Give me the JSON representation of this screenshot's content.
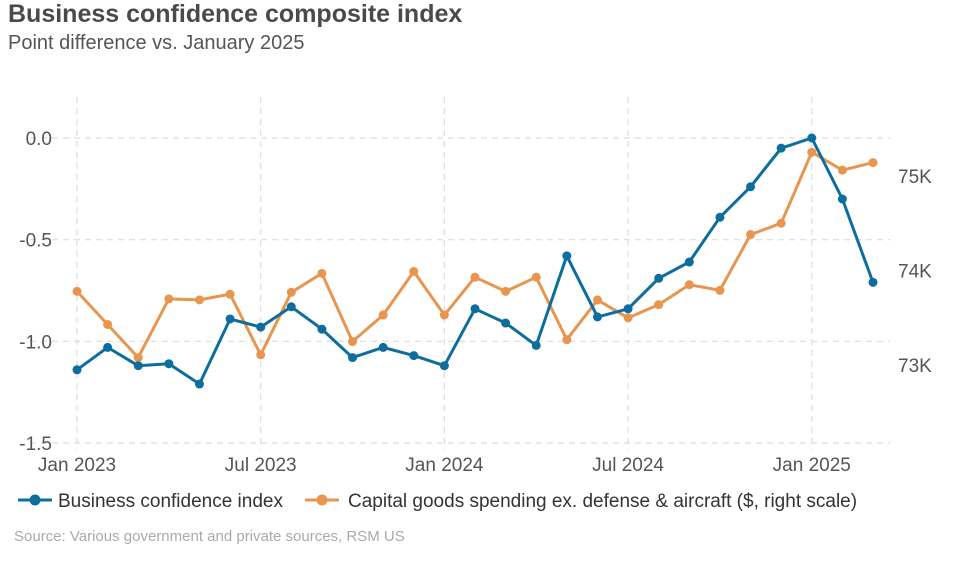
{
  "title": "Business confidence composite index",
  "subtitle": "Point difference vs. January 2025",
  "source": "Source: Various government and private sources, RSM US",
  "chart_data": {
    "type": "line",
    "x": [
      "2023-01",
      "2023-02",
      "2023-03",
      "2023-04",
      "2023-05",
      "2023-06",
      "2023-07",
      "2023-08",
      "2023-09",
      "2023-10",
      "2023-11",
      "2023-12",
      "2024-01",
      "2024-02",
      "2024-03",
      "2024-04",
      "2024-05",
      "2024-06",
      "2024-07",
      "2024-08",
      "2024-09",
      "2024-10",
      "2024-11",
      "2024-12",
      "2025-01",
      "2025-02",
      "2025-03"
    ],
    "x_ticks": [
      {
        "label": "Jan 2023",
        "index": 0
      },
      {
        "label": "Jul 2023",
        "index": 6
      },
      {
        "label": "Jan 2024",
        "index": 12
      },
      {
        "label": "Jul 2024",
        "index": 18
      },
      {
        "label": "Jan 2025",
        "index": 24
      }
    ],
    "left_axis": {
      "ticks": [
        "0.0",
        "-0.5",
        "-1.0",
        "-1.5"
      ],
      "tick_values": [
        0,
        -0.5,
        -1.0,
        -1.5
      ],
      "range": [
        -1.5,
        0
      ]
    },
    "right_axis": {
      "ticks": [
        "75K",
        "74K",
        "73K"
      ],
      "tick_values": [
        75000,
        74000,
        73000
      ],
      "range": [
        72400,
        75400
      ]
    },
    "series": [
      {
        "name": "Business confidence index",
        "axis": "left",
        "color": "#0d6e9e",
        "values": [
          -1.14,
          -1.03,
          -1.12,
          -1.11,
          -1.21,
          -0.89,
          -0.93,
          -0.83,
          -0.94,
          -1.08,
          -1.03,
          -1.07,
          -1.12,
          -0.84,
          -0.91,
          -1.02,
          -0.58,
          -0.88,
          -0.84,
          -0.69,
          -0.61,
          -0.39,
          -0.24,
          -0.05,
          0.0,
          -0.3,
          -0.71
        ]
      },
      {
        "name": "Capital goods spending ex. defense & aircraft ($, right scale)",
        "axis": "right",
        "color": "#e8964f",
        "values": [
          73780,
          73430,
          73080,
          73700,
          73690,
          73750,
          73110,
          73770,
          73970,
          73250,
          73530,
          73990,
          73530,
          73930,
          73780,
          73930,
          73270,
          73690,
          73500,
          73640,
          73850,
          73790,
          74380,
          74500,
          75250,
          75060,
          75140
        ]
      }
    ],
    "legend_position": "bottom-left"
  }
}
